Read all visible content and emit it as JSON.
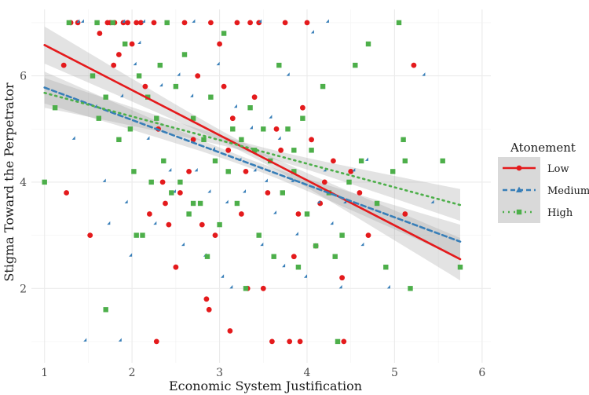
{
  "chart_data": {
    "type": "scatter",
    "xlabel": "Economic System Justification",
    "ylabel": "Stigma Toward the Perpetrator",
    "xlim": [
      0.85,
      6.1
    ],
    "ylim": [
      0.6,
      7.25
    ],
    "x_ticks": [
      1,
      2,
      3,
      4,
      5,
      6
    ],
    "y_ticks": [
      2,
      4,
      6
    ],
    "grid": true,
    "legend": {
      "title": "Atonement",
      "position": "right"
    },
    "series": [
      {
        "name": "Low",
        "color": "#e41a1c",
        "marker": "circle",
        "line_style": "solid",
        "fit": {
          "x": [
            1,
            5.75
          ],
          "y": [
            6.58,
            2.55
          ]
        },
        "ci_halfwidth": {
          "start": 0.35,
          "center": 0.09,
          "end": 0.4
        },
        "points": [
          [
            1.22,
            6.2
          ],
          [
            1.3,
            7.0
          ],
          [
            1.38,
            7.0
          ],
          [
            1.52,
            3.0
          ],
          [
            1.63,
            6.8
          ],
          [
            1.72,
            7.0
          ],
          [
            1.75,
            7.0
          ],
          [
            1.79,
            6.2
          ],
          [
            1.8,
            7.0
          ],
          [
            1.85,
            6.4
          ],
          [
            1.9,
            7.0
          ],
          [
            1.95,
            7.0
          ],
          [
            2.0,
            6.6
          ],
          [
            2.05,
            7.0
          ],
          [
            2.1,
            7.0
          ],
          [
            2.15,
            5.8
          ],
          [
            2.2,
            3.4
          ],
          [
            2.25,
            7.0
          ],
          [
            2.3,
            5.0
          ],
          [
            2.35,
            4.0
          ],
          [
            2.38,
            3.6
          ],
          [
            2.42,
            3.2
          ],
          [
            2.5,
            2.4
          ],
          [
            2.55,
            3.8
          ],
          [
            2.6,
            7.0
          ],
          [
            2.65,
            4.2
          ],
          [
            2.7,
            4.8
          ],
          [
            2.75,
            6.0
          ],
          [
            2.8,
            3.2
          ],
          [
            2.85,
            1.8
          ],
          [
            2.9,
            7.0
          ],
          [
            2.95,
            3.0
          ],
          [
            3.0,
            6.6
          ],
          [
            3.05,
            5.8
          ],
          [
            3.1,
            4.6
          ],
          [
            3.12,
            1.2
          ],
          [
            3.15,
            5.2
          ],
          [
            3.2,
            7.0
          ],
          [
            3.25,
            3.4
          ],
          [
            3.3,
            4.2
          ],
          [
            3.35,
            7.0
          ],
          [
            3.4,
            5.6
          ],
          [
            3.45,
            7.0
          ],
          [
            3.5,
            2.0
          ],
          [
            3.55,
            3.8
          ],
          [
            3.6,
            1.0
          ],
          [
            3.65,
            5.0
          ],
          [
            3.7,
            4.6
          ],
          [
            3.75,
            7.0
          ],
          [
            3.8,
            1.0
          ],
          [
            3.85,
            2.6
          ],
          [
            3.9,
            3.4
          ],
          [
            3.95,
            5.4
          ],
          [
            4.0,
            7.0
          ],
          [
            4.05,
            4.8
          ],
          [
            4.1,
            2.8
          ],
          [
            4.15,
            3.6
          ],
          [
            4.2,
            4.0
          ],
          [
            4.3,
            4.4
          ],
          [
            4.4,
            2.2
          ],
          [
            4.5,
            4.2
          ],
          [
            4.6,
            3.8
          ],
          [
            4.7,
            3.0
          ],
          [
            5.12,
            3.4
          ],
          [
            5.22,
            6.2
          ],
          [
            1.25,
            3.8
          ],
          [
            2.28,
            1.0
          ],
          [
            2.88,
            1.6
          ],
          [
            3.32,
            2.0
          ],
          [
            3.92,
            1.0
          ],
          [
            4.42,
            1.0
          ]
        ]
      },
      {
        "name": "Medium",
        "color": "#377eb8",
        "marker": "triangle",
        "line_style": "dashed",
        "fit": {
          "x": [
            1,
            5.75
          ],
          "y": [
            5.78,
            2.88
          ]
        },
        "ci_halfwidth": {
          "start": 0.3,
          "center": 0.08,
          "end": 0.32
        },
        "points": [
          [
            1.35,
            4.8
          ],
          [
            1.4,
            7.0
          ],
          [
            1.45,
            7.0
          ],
          [
            1.48,
            1.0
          ],
          [
            1.6,
            5.4
          ],
          [
            1.7,
            4.0
          ],
          [
            1.75,
            3.2
          ],
          [
            1.88,
            1.0
          ],
          [
            1.9,
            5.6
          ],
          [
            1.95,
            3.6
          ],
          [
            2.0,
            2.6
          ],
          [
            2.05,
            6.2
          ],
          [
            2.1,
            6.6
          ],
          [
            2.15,
            7.0
          ],
          [
            2.2,
            4.8
          ],
          [
            2.28,
            3.2
          ],
          [
            2.35,
            5.8
          ],
          [
            2.45,
            4.2
          ],
          [
            2.5,
            3.8
          ],
          [
            2.55,
            6.0
          ],
          [
            2.6,
            2.8
          ],
          [
            2.7,
            5.6
          ],
          [
            2.75,
            4.2
          ],
          [
            2.85,
            2.6
          ],
          [
            2.9,
            3.8
          ],
          [
            2.95,
            4.6
          ],
          [
            3.0,
            6.2
          ],
          [
            3.05,
            2.2
          ],
          [
            3.1,
            3.6
          ],
          [
            3.15,
            2.0
          ],
          [
            3.2,
            5.4
          ],
          [
            3.25,
            4.4
          ],
          [
            3.3,
            3.8
          ],
          [
            3.38,
            5.0
          ],
          [
            3.42,
            4.2
          ],
          [
            3.5,
            2.8
          ],
          [
            3.55,
            4.0
          ],
          [
            3.6,
            5.2
          ],
          [
            3.65,
            3.4
          ],
          [
            3.7,
            4.8
          ],
          [
            3.75,
            2.4
          ],
          [
            3.8,
            6.0
          ],
          [
            3.85,
            4.0
          ],
          [
            3.9,
            3.0
          ],
          [
            4.0,
            2.2
          ],
          [
            4.08,
            6.8
          ],
          [
            4.15,
            3.6
          ],
          [
            4.22,
            4.2
          ],
          [
            4.3,
            3.2
          ],
          [
            4.4,
            2.0
          ],
          [
            4.45,
            3.6
          ],
          [
            4.55,
            4.2
          ],
          [
            4.65,
            2.8
          ],
          [
            4.7,
            4.4
          ],
          [
            4.95,
            2.0
          ],
          [
            5.35,
            6.0
          ],
          [
            5.45,
            3.6
          ],
          [
            1.92,
            7.0
          ],
          [
            2.72,
            7.0
          ],
          [
            3.48,
            7.0
          ],
          [
            4.25,
            7.0
          ]
        ]
      },
      {
        "name": "High",
        "color": "#4daf4a",
        "marker": "square",
        "line_style": "dotted",
        "fit": {
          "x": [
            1,
            5.75
          ],
          "y": [
            5.68,
            3.57
          ]
        },
        "ci_halfwidth": {
          "start": 0.28,
          "center": 0.08,
          "end": 0.3
        },
        "points": [
          [
            1.0,
            4.0
          ],
          [
            1.12,
            5.4
          ],
          [
            1.28,
            7.0
          ],
          [
            1.55,
            6.0
          ],
          [
            1.62,
            5.2
          ],
          [
            1.6,
            7.0
          ],
          [
            1.7,
            5.6
          ],
          [
            1.78,
            7.0
          ],
          [
            1.85,
            4.8
          ],
          [
            1.92,
            6.6
          ],
          [
            1.98,
            5.0
          ],
          [
            2.02,
            4.2
          ],
          [
            2.08,
            6.0
          ],
          [
            2.12,
            3.0
          ],
          [
            2.18,
            5.6
          ],
          [
            2.22,
            4.0
          ],
          [
            2.28,
            5.2
          ],
          [
            2.32,
            6.2
          ],
          [
            2.36,
            4.4
          ],
          [
            2.4,
            7.0
          ],
          [
            2.45,
            3.8
          ],
          [
            2.5,
            5.8
          ],
          [
            2.55,
            4.0
          ],
          [
            2.6,
            6.4
          ],
          [
            2.65,
            3.4
          ],
          [
            2.7,
            5.2
          ],
          [
            2.78,
            3.6
          ],
          [
            2.82,
            4.8
          ],
          [
            2.86,
            2.6
          ],
          [
            2.9,
            5.6
          ],
          [
            2.95,
            4.4
          ],
          [
            3.0,
            3.2
          ],
          [
            3.05,
            6.8
          ],
          [
            3.1,
            4.2
          ],
          [
            3.15,
            5.0
          ],
          [
            3.2,
            3.6
          ],
          [
            3.25,
            4.8
          ],
          [
            3.3,
            2.0
          ],
          [
            3.35,
            5.4
          ],
          [
            3.4,
            4.6
          ],
          [
            3.45,
            3.0
          ],
          [
            3.5,
            5.0
          ],
          [
            3.58,
            4.4
          ],
          [
            3.62,
            2.6
          ],
          [
            3.68,
            6.2
          ],
          [
            3.72,
            3.8
          ],
          [
            3.78,
            5.0
          ],
          [
            3.85,
            4.2
          ],
          [
            3.9,
            2.4
          ],
          [
            3.95,
            5.2
          ],
          [
            4.0,
            3.4
          ],
          [
            4.05,
            4.6
          ],
          [
            4.1,
            2.8
          ],
          [
            4.18,
            5.8
          ],
          [
            4.25,
            3.8
          ],
          [
            4.32,
            2.6
          ],
          [
            4.4,
            3.0
          ],
          [
            4.48,
            4.0
          ],
          [
            4.55,
            6.2
          ],
          [
            4.62,
            4.4
          ],
          [
            4.7,
            6.6
          ],
          [
            4.8,
            3.6
          ],
          [
            4.9,
            2.4
          ],
          [
            4.98,
            4.2
          ],
          [
            5.05,
            7.0
          ],
          [
            5.12,
            4.4
          ],
          [
            5.18,
            2.0
          ],
          [
            5.55,
            4.4
          ],
          [
            5.75,
            2.4
          ],
          [
            1.7,
            1.6
          ],
          [
            2.7,
            3.6
          ],
          [
            3.85,
            4.6
          ],
          [
            4.35,
            1.0
          ],
          [
            2.05,
            3.0
          ],
          [
            5.1,
            4.8
          ]
        ]
      }
    ]
  }
}
